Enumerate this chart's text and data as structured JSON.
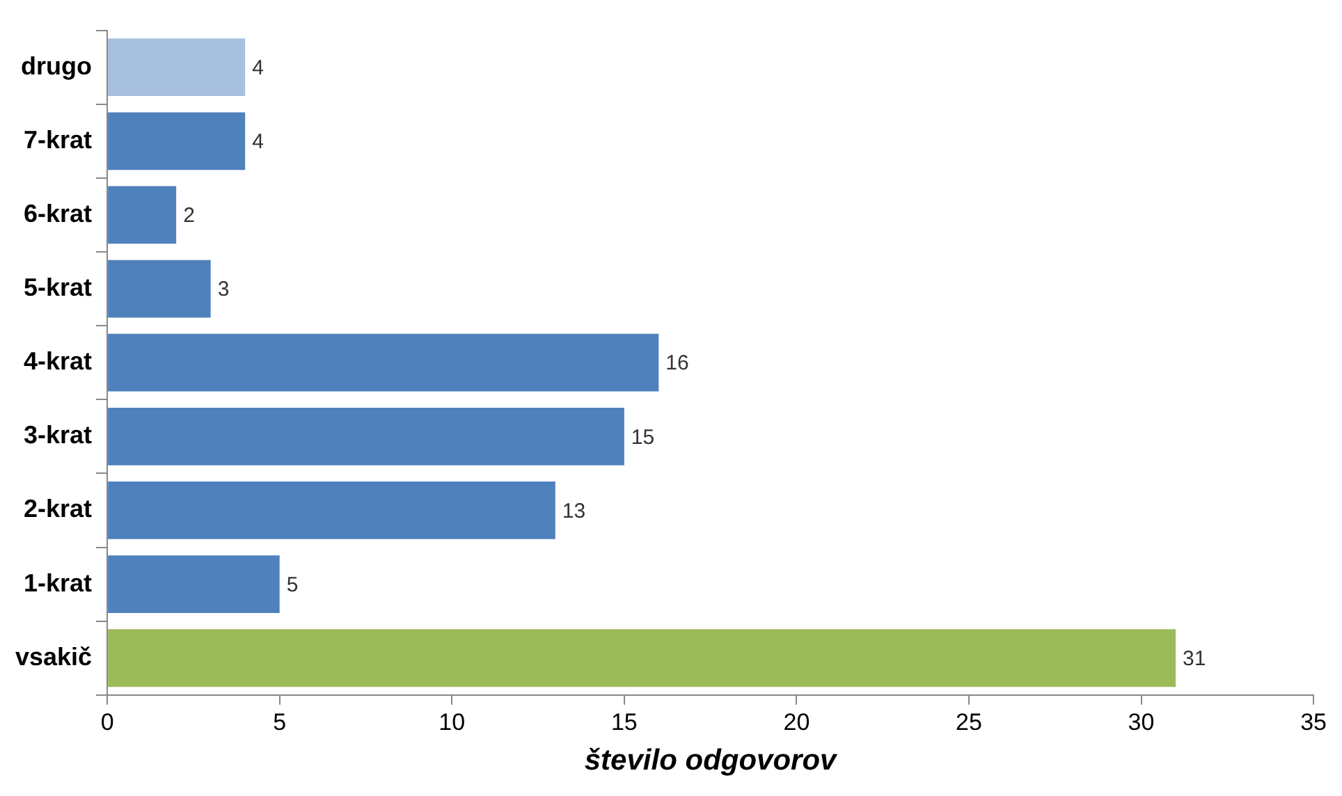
{
  "chart_data": {
    "type": "bar",
    "orientation": "horizontal",
    "xlabel": "število odgovorov",
    "categories": [
      "drugo",
      "7-krat",
      "6-krat",
      "5-krat",
      "4-krat",
      "3-krat",
      "2-krat",
      "1-krat",
      "vsakič"
    ],
    "values": [
      4,
      4,
      2,
      3,
      16,
      15,
      13,
      5,
      31
    ],
    "colors": [
      "#a7c0df",
      "#4f81bd",
      "#4f81bd",
      "#4f81bd",
      "#4f81bd",
      "#4f81bd",
      "#4f81bd",
      "#4f81bd",
      "#9bbb59"
    ],
    "xlim": [
      0,
      35
    ],
    "xticks": [
      0,
      5,
      10,
      15,
      20,
      25,
      30,
      35
    ],
    "grid": false,
    "legend": false,
    "data_labels": true
  }
}
